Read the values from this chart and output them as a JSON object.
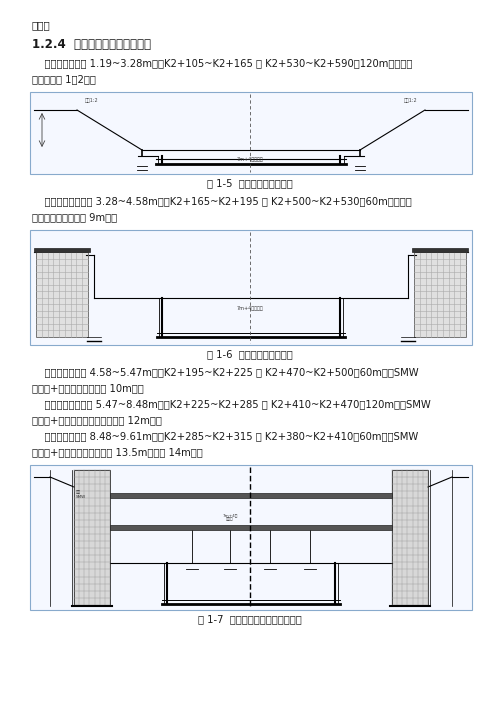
{
  "background_color": "#ffffff",
  "page_width": 5.0,
  "page_height": 7.08,
  "dpi": 100,
  "line1": "工程。",
  "section_title": "1.2.4  围护结构分区及结构型式",
  "para1_line1": "    区段一（基坑深 1.19~3.28m）：K2+105~K2+165 和 K2+530~K2+590（120m）（放坡",
  "para1_line2": "开挖，坡率 1：2）。",
  "fig1_caption": "图 1-5  一区围护结构剖面图",
  "para2_line1": "    区段二（基坑深约 3.28~4.58m）：K2+165~K2+195 和 K2+500~K2+530（60m）（水泥",
  "para2_line2": "土重力式挡墙，墙深 9m）。",
  "fig2_caption": "图 1-6  二区围护结构剖面图",
  "para3_line1": "    区段三（基坑深 4.58~5.47m）：K2+195~K2+225 和 K2+470~K2+500（60m）（SMW",
  "para3_line2": "工法桩+一道内支撑，桩深 10m）。",
  "para4_line1": "    区段四（基坑深约 5.47~8.48m）：K2+225~K2+285 和 K2+410~K2+470（120m）（SMW",
  "para4_line2": "工法桩+一（两）道内支撑，桩深 12m）。",
  "para5_line1": "    区段五（基坑深 8.48~9.61m）：K2+285~K2+315 和 K2+380~K2+410（60m）（SMW",
  "para5_line2": "工法桩+两道内支撑，型钢长 13.5m，桩深 14m）。",
  "fig3_caption": "图 1-7  三区、四区围护结构剖面图"
}
